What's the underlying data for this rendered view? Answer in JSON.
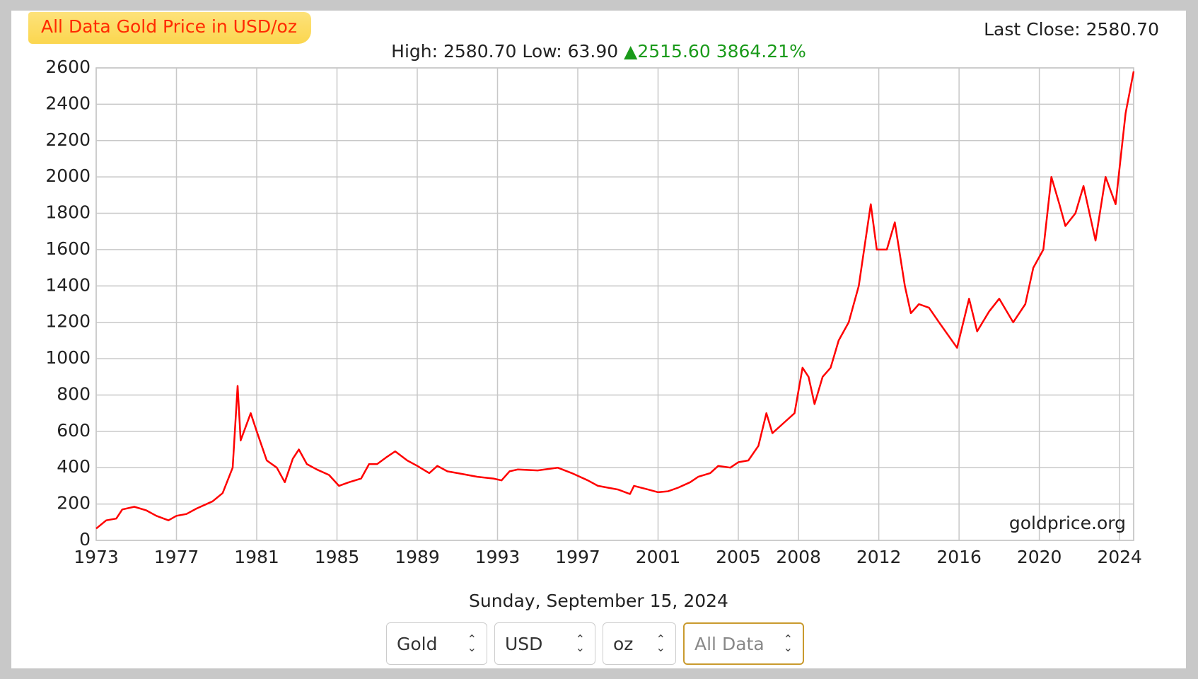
{
  "chart_data": {
    "type": "line",
    "title": "All Data Gold Price in USD/oz",
    "last_close": "Last Close: 2580.70",
    "stats": {
      "high": "High: 2580.70",
      "low": "Low: 63.90",
      "change": "2515.60",
      "percent": "3864.21%"
    },
    "watermark": "goldprice.org",
    "date": "Sunday, September 15, 2024",
    "xlim": [
      1973,
      2024.7
    ],
    "xticks": [
      1973,
      1977,
      1981,
      1985,
      1989,
      1993,
      1997,
      2001,
      2005,
      2008,
      2012,
      2016,
      2020,
      2024
    ],
    "ylim": [
      0,
      2600
    ],
    "yticks": [
      0,
      200,
      400,
      600,
      800,
      1000,
      1200,
      1400,
      1600,
      1800,
      2000,
      2200,
      2400,
      2600
    ],
    "grid": true,
    "series": [
      {
        "color": "#ff0000",
        "x": [
          1973.0,
          1973.5,
          1974.0,
          1974.3,
          1974.9,
          1975.5,
          1976.0,
          1976.6,
          1977.0,
          1977.5,
          1978.0,
          1978.8,
          1979.3,
          1979.8,
          1980.05,
          1980.2,
          1980.7,
          1981.0,
          1981.5,
          1982.0,
          1982.4,
          1982.8,
          1983.1,
          1983.5,
          1984.0,
          1984.6,
          1985.1,
          1985.6,
          1986.2,
          1986.6,
          1987.0,
          1987.5,
          1987.9,
          1988.5,
          1989.0,
          1989.6,
          1990.0,
          1990.5,
          1991.0,
          1992.0,
          1992.8,
          1993.2,
          1993.6,
          1994.0,
          1995.0,
          1996.0,
          1996.7,
          1997.5,
          1998.0,
          1999.0,
          1999.6,
          1999.8,
          2000.5,
          2001.0,
          2001.5,
          2002.0,
          2002.6,
          2003.0,
          2003.6,
          2004.0,
          2004.6,
          2005.0,
          2005.5,
          2006.0,
          2006.4,
          2006.7,
          2007.3,
          2007.8,
          2008.2,
          2008.5,
          2008.8,
          2009.2,
          2009.6,
          2010.0,
          2010.5,
          2011.0,
          2011.6,
          2011.9,
          2012.4,
          2012.8,
          2013.3,
          2013.6,
          2014.0,
          2014.5,
          2015.0,
          2015.9,
          2016.5,
          2016.9,
          2017.5,
          2018.0,
          2018.7,
          2019.3,
          2019.7,
          2020.2,
          2020.6,
          2021.0,
          2021.3,
          2021.8,
          2022.2,
          2022.8,
          2023.3,
          2023.8,
          2024.0,
          2024.3,
          2024.7
        ],
        "values": [
          65,
          110,
          120,
          170,
          185,
          165,
          135,
          110,
          135,
          145,
          175,
          215,
          260,
          400,
          850,
          550,
          700,
          600,
          440,
          400,
          320,
          450,
          500,
          420,
          390,
          360,
          300,
          320,
          340,
          420,
          420,
          460,
          490,
          440,
          410,
          370,
          410,
          380,
          370,
          350,
          340,
          330,
          380,
          390,
          385,
          400,
          370,
          330,
          300,
          280,
          255,
          300,
          280,
          265,
          270,
          290,
          320,
          350,
          370,
          410,
          400,
          430,
          440,
          520,
          700,
          590,
          650,
          700,
          950,
          900,
          750,
          900,
          950,
          1100,
          1200,
          1400,
          1850,
          1600,
          1600,
          1750,
          1400,
          1250,
          1300,
          1280,
          1200,
          1060,
          1330,
          1150,
          1260,
          1330,
          1200,
          1300,
          1500,
          1600,
          2000,
          1850,
          1730,
          1800,
          1950,
          1650,
          2000,
          1850,
          2050,
          2350,
          2580.7
        ]
      }
    ]
  },
  "controls": [
    "Gold",
    "USD",
    "oz",
    "All Data"
  ]
}
